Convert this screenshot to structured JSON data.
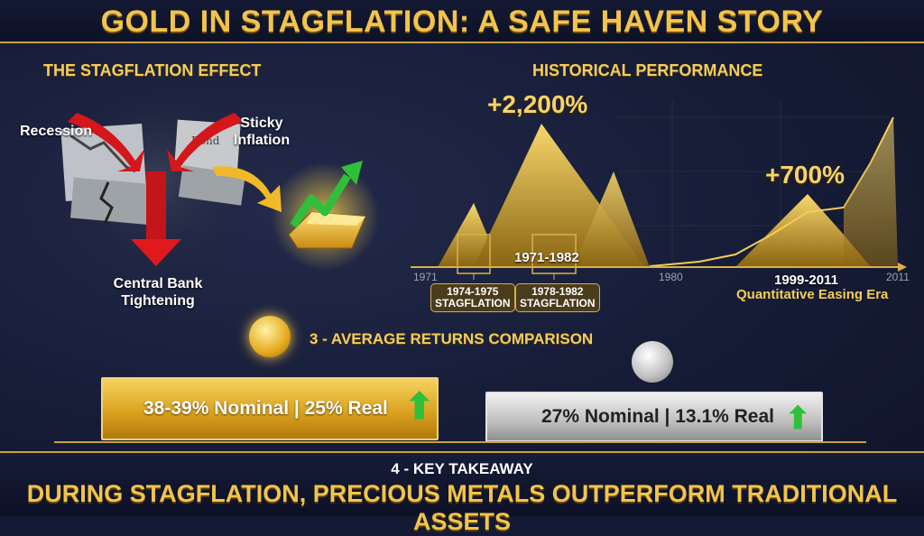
{
  "title": "GOLD IN STAGFLATION: A SAFE HAVEN STORY",
  "left_panel": {
    "heading": "THE STAGFLATION EFFECT",
    "labels": {
      "recession": "Recession",
      "sticky_inflation": "Sticky Inflation",
      "central_bank": "Central Bank Tightening"
    },
    "icons": [
      "red-down-arrow-icon",
      "falling-chart-icon",
      "bond-certificate-icon",
      "dollar-bill-icon",
      "gold-bar-icon",
      "green-up-arrow-icon"
    ]
  },
  "right_panel": {
    "heading": "HISTORICAL PERFORMANCE",
    "peak1_label": "+2,200%",
    "peak2_label": "+700%",
    "range1": "1971-1982",
    "axis_ticks": [
      "1971",
      "1980",
      "2011"
    ],
    "tag1": {
      "years": "1974-1975",
      "label": "STAGFLATION"
    },
    "tag2": {
      "years": "1978-1982",
      "label": "STAGFLATION"
    },
    "range2": "1999-2011",
    "range2_label": "Quantitative Easing Era"
  },
  "comparison": {
    "heading": "3 - AVERAGE RETURNS COMPARISON",
    "gold_text": "38-39% Nominal | 25% Real",
    "silver_text": "27% Nominal | 13.1% Real",
    "colors": {
      "gold": "#e0a928",
      "silver": "#c4c4c4",
      "up": "#2fbf3a"
    }
  },
  "takeaway": {
    "heading": "4 - KEY TAKEAWAY",
    "text": "DURING STAGFLATION, PRECIOUS METALS OUTPERFORM TRADITIONAL ASSETS"
  }
}
